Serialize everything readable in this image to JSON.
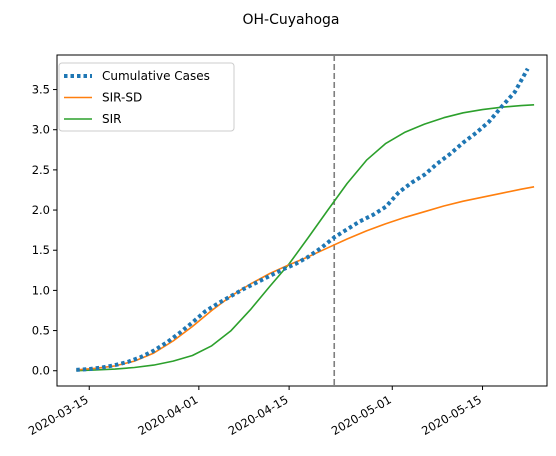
{
  "chart_data": {
    "type": "line",
    "title": "OH-Cuyahoga",
    "xlabel": "",
    "ylabel": "",
    "x_axis": {
      "type": "date",
      "range": [
        "2020-03-10",
        "2020-05-25"
      ],
      "ticks": [
        "2020-03-15",
        "2020-04-01",
        "2020-04-15",
        "2020-05-01",
        "2020-05-15"
      ]
    },
    "y_axis": {
      "range": [
        -0.19,
        3.93
      ],
      "ticks": [
        "0.0",
        "0.5",
        "1.0",
        "1.5",
        "2.0",
        "2.5",
        "3.0",
        "3.5"
      ]
    },
    "grid": false,
    "legend_position": "top-left",
    "vline": {
      "x": "2020-04-22",
      "style": "dashed",
      "color": "#7f7f7f"
    },
    "series": [
      {
        "name": "Cumulative Cases",
        "style": "dotted",
        "color": "#1f77b4",
        "points": [
          [
            "2020-03-13",
            0.01
          ],
          [
            "2020-03-15",
            0.02
          ],
          [
            "2020-03-17",
            0.04
          ],
          [
            "2020-03-19",
            0.07
          ],
          [
            "2020-03-21",
            0.11
          ],
          [
            "2020-03-23",
            0.17
          ],
          [
            "2020-03-25",
            0.25
          ],
          [
            "2020-03-27",
            0.35
          ],
          [
            "2020-03-29",
            0.47
          ],
          [
            "2020-03-31",
            0.6
          ],
          [
            "2020-04-02",
            0.74
          ],
          [
            "2020-04-04",
            0.84
          ],
          [
            "2020-04-06",
            0.93
          ],
          [
            "2020-04-08",
            1.02
          ],
          [
            "2020-04-10",
            1.1
          ],
          [
            "2020-04-12",
            1.18
          ],
          [
            "2020-04-14",
            1.26
          ],
          [
            "2020-04-16",
            1.33
          ],
          [
            "2020-04-18",
            1.42
          ],
          [
            "2020-04-20",
            1.53
          ],
          [
            "2020-04-22",
            1.66
          ],
          [
            "2020-04-24",
            1.76
          ],
          [
            "2020-04-26",
            1.86
          ],
          [
            "2020-04-28",
            1.94
          ],
          [
            "2020-04-30",
            2.04
          ],
          [
            "2020-05-02",
            2.22
          ],
          [
            "2020-05-04",
            2.34
          ],
          [
            "2020-05-06",
            2.44
          ],
          [
            "2020-05-08",
            2.58
          ],
          [
            "2020-05-10",
            2.7
          ],
          [
            "2020-05-12",
            2.84
          ],
          [
            "2020-05-14",
            2.96
          ],
          [
            "2020-05-16",
            3.1
          ],
          [
            "2020-05-18",
            3.29
          ],
          [
            "2020-05-20",
            3.47
          ],
          [
            "2020-05-22",
            3.76
          ]
        ]
      },
      {
        "name": "SIR-SD",
        "style": "solid",
        "color": "#ff7f0e",
        "points": [
          [
            "2020-03-13",
            0.01
          ],
          [
            "2020-03-16",
            0.03
          ],
          [
            "2020-03-19",
            0.06
          ],
          [
            "2020-03-22",
            0.12
          ],
          [
            "2020-03-25",
            0.22
          ],
          [
            "2020-03-28",
            0.37
          ],
          [
            "2020-03-31",
            0.55
          ],
          [
            "2020-04-03",
            0.75
          ],
          [
            "2020-04-06",
            0.93
          ],
          [
            "2020-04-09",
            1.08
          ],
          [
            "2020-04-12",
            1.21
          ],
          [
            "2020-04-15",
            1.32
          ],
          [
            "2020-04-18",
            1.42
          ],
          [
            "2020-04-21",
            1.53
          ],
          [
            "2020-04-24",
            1.64
          ],
          [
            "2020-04-27",
            1.74
          ],
          [
            "2020-04-30",
            1.83
          ],
          [
            "2020-05-03",
            1.91
          ],
          [
            "2020-05-06",
            1.98
          ],
          [
            "2020-05-09",
            2.05
          ],
          [
            "2020-05-12",
            2.11
          ],
          [
            "2020-05-15",
            2.16
          ],
          [
            "2020-05-18",
            2.21
          ],
          [
            "2020-05-21",
            2.26
          ],
          [
            "2020-05-23",
            2.29
          ]
        ]
      },
      {
        "name": "SIR",
        "style": "solid",
        "color": "#2ca02c",
        "points": [
          [
            "2020-03-13",
            0.0
          ],
          [
            "2020-03-16",
            0.01
          ],
          [
            "2020-03-19",
            0.02
          ],
          [
            "2020-03-22",
            0.04
          ],
          [
            "2020-03-25",
            0.07
          ],
          [
            "2020-03-28",
            0.12
          ],
          [
            "2020-03-31",
            0.19
          ],
          [
            "2020-04-03",
            0.31
          ],
          [
            "2020-04-06",
            0.5
          ],
          [
            "2020-04-09",
            0.76
          ],
          [
            "2020-04-12",
            1.05
          ],
          [
            "2020-04-15",
            1.33
          ],
          [
            "2020-04-18",
            1.66
          ],
          [
            "2020-04-21",
            2.0
          ],
          [
            "2020-04-24",
            2.33
          ],
          [
            "2020-04-27",
            2.62
          ],
          [
            "2020-04-30",
            2.83
          ],
          [
            "2020-05-03",
            2.97
          ],
          [
            "2020-05-06",
            3.07
          ],
          [
            "2020-05-09",
            3.15
          ],
          [
            "2020-05-12",
            3.21
          ],
          [
            "2020-05-15",
            3.25
          ],
          [
            "2020-05-18",
            3.28
          ],
          [
            "2020-05-21",
            3.3
          ],
          [
            "2020-05-23",
            3.31
          ]
        ]
      }
    ]
  }
}
